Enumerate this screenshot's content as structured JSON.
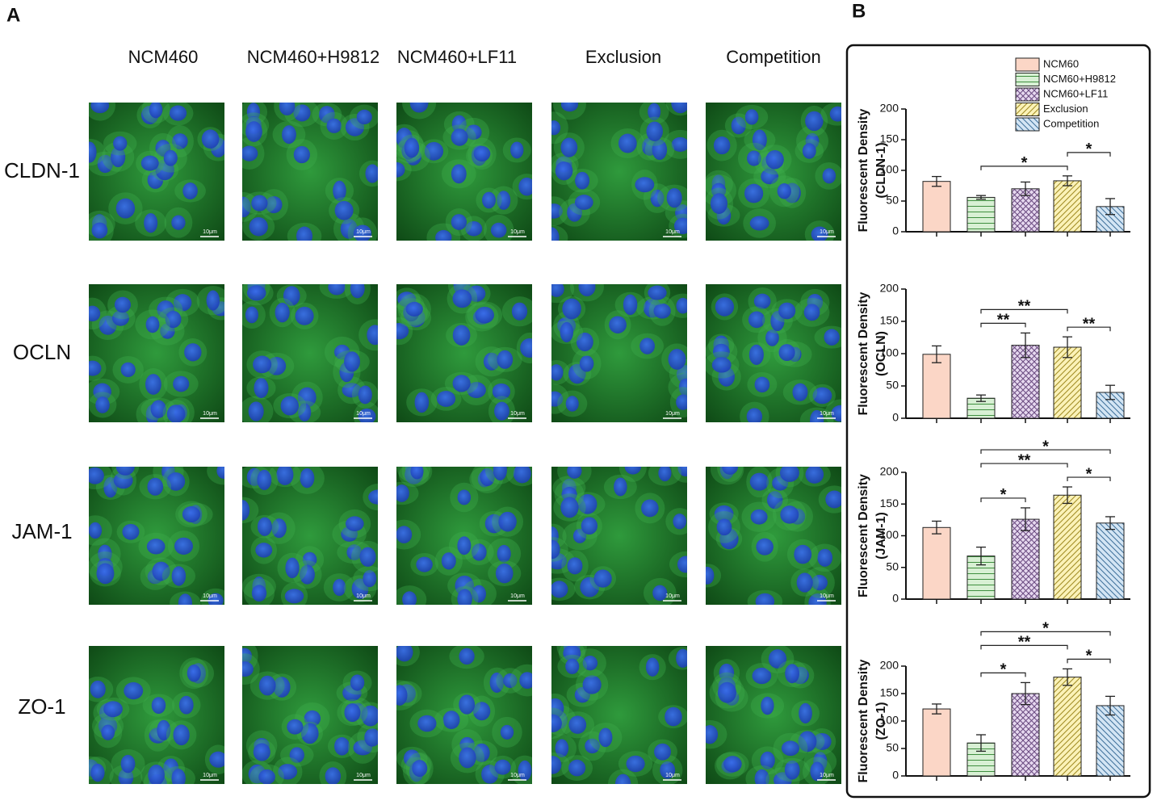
{
  "panel_a": {
    "label": "A",
    "columns": [
      "NCM460",
      "NCM460+H9812",
      "NCM460+LF11",
      "Exclusion",
      "Competition"
    ],
    "rows": [
      "CLDN-1",
      "OCLN",
      "JAM-1",
      "ZO-1"
    ],
    "scale_bar": "10μm"
  },
  "panel_b": {
    "label": "B"
  },
  "chart_data": [
    {
      "type": "bar",
      "ylabel": "Fluorescent Density",
      "ylabel_sub": "(CLDN-1)",
      "legend": true,
      "categories": [
        "NCM60",
        "NCM60+H9812",
        "NCM60+LF11",
        "Exclusion",
        "Competition"
      ],
      "colors": [
        "#fbd6c6",
        "#d8f0d4",
        "#e6d8ef",
        "#fbf2b8",
        "#d3e5f4"
      ],
      "patterns": [
        "none",
        "horizontal",
        "crosshatch",
        "diagonal",
        "antidiagonal"
      ],
      "values": [
        82,
        56,
        70,
        83,
        41
      ],
      "errors": [
        8,
        3,
        11,
        8,
        13
      ],
      "ylim": [
        0,
        200
      ],
      "yticks": [
        0,
        50,
        100,
        150,
        200
      ],
      "annotations": [
        {
          "text": "*",
          "from": "NCM60+H9812",
          "to": "Exclusion"
        },
        {
          "text": "*",
          "from": "Exclusion",
          "to": "Competition"
        }
      ]
    },
    {
      "type": "bar",
      "ylabel": "Fluorescent Density",
      "ylabel_sub": "(OCLN)",
      "legend": false,
      "categories": [
        "NCM60",
        "NCM60+H9812",
        "NCM60+LF11",
        "Exclusion",
        "Competition"
      ],
      "colors": [
        "#fbd6c6",
        "#d8f0d4",
        "#e6d8ef",
        "#fbf2b8",
        "#d3e5f4"
      ],
      "patterns": [
        "none",
        "horizontal",
        "crosshatch",
        "diagonal",
        "antidiagonal"
      ],
      "values": [
        99,
        31,
        113,
        110,
        40
      ],
      "errors": [
        13,
        5,
        19,
        16,
        11
      ],
      "ylim": [
        0,
        200
      ],
      "yticks": [
        0,
        50,
        100,
        150,
        200
      ],
      "annotations": [
        {
          "text": "**",
          "from": "NCM60+H9812",
          "to": "NCM60+LF11"
        },
        {
          "text": "**",
          "from": "Exclusion",
          "to": "Competition"
        },
        {
          "text": "**",
          "from": "NCM60+H9812",
          "to": "Exclusion"
        }
      ]
    },
    {
      "type": "bar",
      "ylabel": "Fluorescent Density",
      "ylabel_sub": "(JAM-1)",
      "legend": false,
      "categories": [
        "NCM60",
        "NCM60+H9812",
        "NCM60+LF11",
        "Exclusion",
        "Competition"
      ],
      "colors": [
        "#fbd6c6",
        "#d8f0d4",
        "#e6d8ef",
        "#fbf2b8",
        "#d3e5f4"
      ],
      "patterns": [
        "none",
        "horizontal",
        "crosshatch",
        "diagonal",
        "antidiagonal"
      ],
      "values": [
        113,
        68,
        126,
        164,
        120
      ],
      "errors": [
        10,
        14,
        18,
        13,
        10
      ],
      "ylim": [
        0,
        200
      ],
      "yticks": [
        0,
        50,
        100,
        150,
        200
      ],
      "annotations": [
        {
          "text": "*",
          "from": "NCM60+H9812",
          "to": "NCM60+LF11"
        },
        {
          "text": "*",
          "from": "Exclusion",
          "to": "Competition"
        },
        {
          "text": "**",
          "from": "NCM60+H9812",
          "to": "Exclusion"
        },
        {
          "text": "*",
          "from": "NCM60+H9812",
          "to": "Competition"
        }
      ]
    },
    {
      "type": "bar",
      "ylabel": "Fluorescent Density",
      "ylabel_sub": "(ZO-1)",
      "legend": false,
      "categories": [
        "NCM60",
        "NCM60+H9812",
        "NCM60+LF11",
        "Exclusion",
        "Competition"
      ],
      "colors": [
        "#fbd6c6",
        "#d8f0d4",
        "#e6d8ef",
        "#fbf2b8",
        "#d3e5f4"
      ],
      "patterns": [
        "none",
        "horizontal",
        "crosshatch",
        "diagonal",
        "antidiagonal"
      ],
      "values": [
        122,
        60,
        150,
        180,
        128
      ],
      "errors": [
        9,
        15,
        20,
        15,
        17
      ],
      "ylim": [
        0,
        200
      ],
      "yticks": [
        0,
        50,
        100,
        150,
        200
      ],
      "annotations": [
        {
          "text": "*",
          "from": "NCM60+H9812",
          "to": "NCM60+LF11"
        },
        {
          "text": "*",
          "from": "Exclusion",
          "to": "Competition"
        },
        {
          "text": "**",
          "from": "NCM60+H9812",
          "to": "Exclusion"
        },
        {
          "text": "*",
          "from": "NCM60+H9812",
          "to": "Competition"
        }
      ]
    }
  ]
}
